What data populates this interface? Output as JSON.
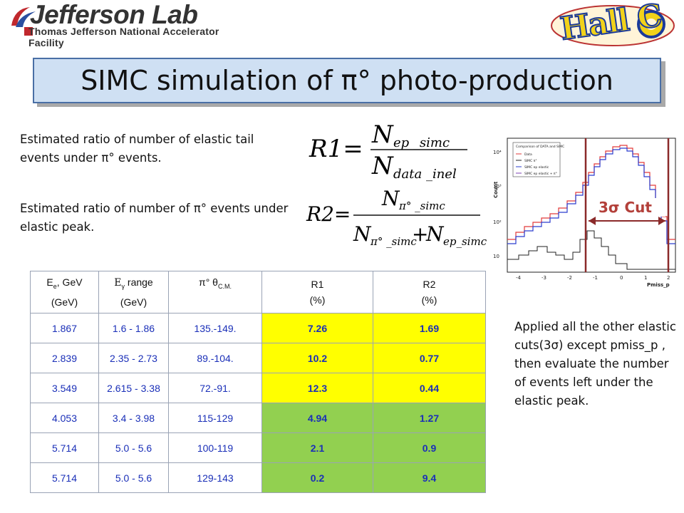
{
  "header": {
    "logo_main": "Jefferson Lab",
    "logo_sub": "Thomas Jefferson National Accelerator Facility",
    "hall_logo": "Hall C"
  },
  "title": "SIMC simulation of π° photo-production",
  "descriptions": {
    "r1": "Estimated  ratio of number of elastic tail events under π° events.",
    "r2": "Estimated  ratio of number of π° events under elastic peak."
  },
  "formulas": {
    "r1_lhs": "R1=",
    "r1_num_base": "N",
    "r1_num_sub": "ep _simc",
    "r1_den_base": "N",
    "r1_den_sub": "data _inel",
    "r2_lhs": "R2=",
    "r2_num_base": "N",
    "r2_num_sub": "π° _simc",
    "r2_den_a_base": "N",
    "r2_den_a_sub": "π° _simc",
    "r2_den_plus": "+",
    "r2_den_b_base": "N",
    "r2_den_b_sub": "ep_simc"
  },
  "table": {
    "headers": [
      {
        "line1_main": "E",
        "line1_sub": "e",
        "line1_rest": ", GeV",
        "line2": "(GeV)"
      },
      {
        "line1_main": "E",
        "line1_sub": "γ",
        "line1_rest": " range",
        "line2": "(GeV)"
      },
      {
        "line1_main": "π° θ",
        "line1_sub": "C.M.",
        "line1_rest": "",
        "line2": ""
      },
      {
        "line1_main": "R1",
        "line1_sub": "",
        "line1_rest": "",
        "line2": "(%)"
      },
      {
        "line1_main": "R2",
        "line1_sub": "",
        "line1_rest": "",
        "line2": "(%)"
      }
    ],
    "rows": [
      {
        "ee": "1.867",
        "eg": "1.6 - 1.86",
        "theta": "135.-149.",
        "r1": "7.26",
        "r2": "1.69",
        "hl": "y"
      },
      {
        "ee": "2.839",
        "eg": "2.35 - 2.73",
        "theta": "89.-104.",
        "r1": "10.2",
        "r2": "0.77",
        "hl": "y"
      },
      {
        "ee": "3.549",
        "eg": "2.615 - 3.38",
        "theta": "72.-91.",
        "r1": "12.3",
        "r2": "0.44",
        "hl": "y"
      },
      {
        "ee": "4.053",
        "eg": "3.4 - 3.98",
        "theta": "115-129",
        "r1": "4.94",
        "r2": "1.27",
        "hl": "g"
      },
      {
        "ee": "5.714",
        "eg": "5.0 - 5.6",
        "theta": "100-119",
        "r1": "2.1",
        "r2": "0.9",
        "hl": "g"
      },
      {
        "ee": "5.714",
        "eg": "5.0 - 5.6",
        "theta": "129-143",
        "r1": "0.2",
        "r2": "9.4",
        "hl": "g"
      }
    ]
  },
  "plot": {
    "ylabel": "Count",
    "xlabel": "Pmiss_p",
    "legend_title": "Comparison of DATA and SIMC",
    "legend": [
      "Data",
      "SIMC π°",
      "SIMC ep elastic",
      "SIMC ep elastic + π°"
    ],
    "x_ticks": [
      "-4",
      "-3",
      "-2",
      "-1",
      "0",
      "1",
      "2"
    ],
    "y_ticks": [
      "10",
      "10²",
      "10³",
      "10⁴"
    ],
    "cut_label": "3σ  Cut",
    "colors": {
      "data": "#e23a3a",
      "pi0": "#222222",
      "elastic": "#2b3ccf",
      "cut": "#8b2a2a"
    }
  },
  "note": "Applied all the other elastic cuts(3σ)  except pmiss_p , then evaluate the number of events left under the elastic peak."
}
